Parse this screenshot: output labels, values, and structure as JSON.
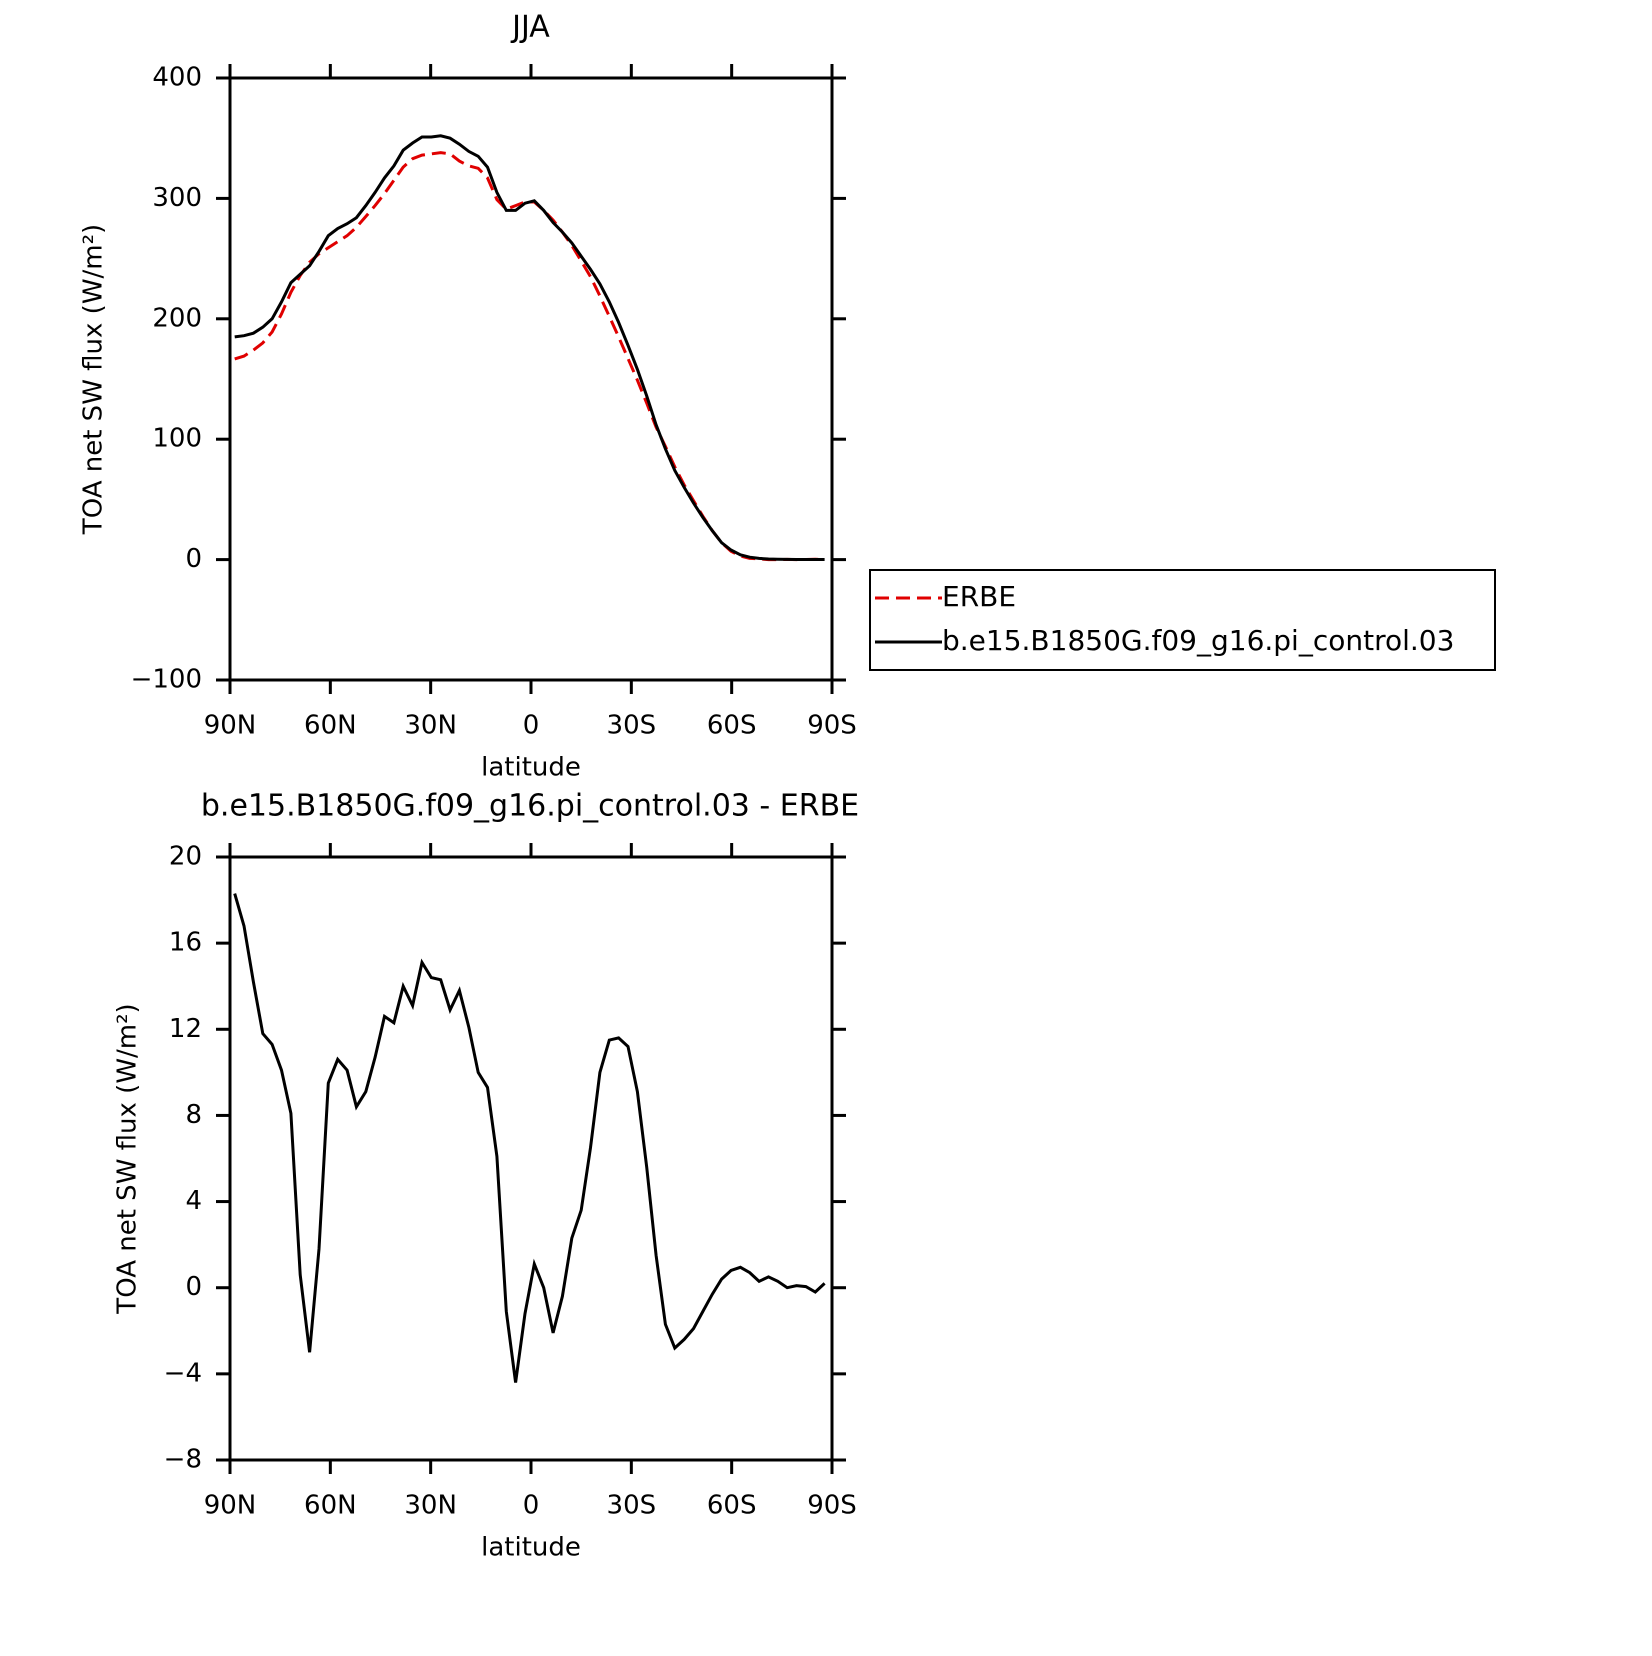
{
  "chart_data": [
    {
      "type": "line",
      "title": "JJA",
      "xlabel": "latitude",
      "ylabel": "TOA net SW flux (W/m²)",
      "xlim": [
        90,
        -90
      ],
      "xticks": [
        {
          "value": 90,
          "label": "90N"
        },
        {
          "value": 60,
          "label": "60N"
        },
        {
          "value": 30,
          "label": "30N"
        },
        0,
        {
          "value": -30,
          "label": "30S"
        },
        {
          "value": -60,
          "label": "60S"
        },
        {
          "value": -90,
          "label": "90S"
        }
      ],
      "ylim": [
        -100,
        400
      ],
      "yticks": [
        {
          "value": -100,
          "label": "−100"
        },
        0,
        100,
        200,
        300,
        400
      ],
      "legend": "outside-right",
      "x": [
        88.6,
        85.8,
        83,
        80.2,
        77.4,
        74.6,
        71.8,
        69,
        66.2,
        63.4,
        60.6,
        57.8,
        55,
        52.2,
        49.4,
        46.6,
        43.8,
        41,
        38.2,
        35.4,
        32.6,
        29.8,
        27,
        24.2,
        21.4,
        18.6,
        15.8,
        13,
        10.2,
        7.4,
        4.6,
        1.8,
        -1,
        -3.8,
        -6.6,
        -9.4,
        -12.2,
        -15,
        -17.8,
        -20.6,
        -23.4,
        -26.2,
        -29,
        -31.8,
        -34.6,
        -37.4,
        -40.2,
        -43,
        -45.8,
        -48.6,
        -51.4,
        -54.2,
        -57,
        -59.8,
        -62.6,
        -65.4,
        -68.2,
        -71,
        -73.8,
        -76.6,
        -79.4,
        -82.2,
        -85,
        -87.8
      ],
      "series": [
        {
          "name": "ERBE",
          "color": "#e00000",
          "dashed": true,
          "values": [
            166.7,
            169,
            174,
            180,
            189,
            204,
            222,
            236,
            247,
            254,
            259,
            264,
            269,
            276,
            285,
            294,
            304,
            315,
            326,
            333,
            336,
            337,
            338,
            337,
            331,
            327,
            325,
            317,
            299,
            291,
            294,
            297,
            297,
            290,
            282,
            272,
            261,
            248,
            235,
            219,
            202,
            185,
            167,
            149,
            130,
            110,
            94,
            77,
            62,
            49,
            36,
            24,
            14,
            7,
            3,
            1,
            0.7,
            0,
            0,
            0.2,
            0,
            0.05,
            0.3,
            -0.1
          ]
        },
        {
          "name": "b.e15.B1850G.f09_g16.pi_control.03",
          "color": "#000000",
          "dashed": false,
          "values": [
            185,
            186,
            188,
            193,
            200,
            214,
            230,
            237,
            244,
            256,
            269,
            275,
            279,
            284,
            294,
            305,
            317,
            327,
            340,
            346,
            351,
            351,
            352,
            350,
            345,
            339,
            335,
            326,
            305,
            290,
            290,
            296,
            298,
            290,
            280,
            272,
            263,
            252,
            241,
            229,
            214,
            197,
            178,
            158,
            136,
            112,
            92,
            74,
            60,
            47,
            35,
            24,
            14,
            8,
            4,
            2,
            1,
            0.5,
            0.3,
            0.2,
            0.1,
            0.1,
            0.1,
            0.1
          ]
        }
      ]
    },
    {
      "type": "line",
      "title": "b.e15.B1850G.f09_g16.pi_control.03 - ERBE",
      "xlabel": "latitude",
      "ylabel": "TOA net SW flux (W/m²)",
      "xlim": [
        90,
        -90
      ],
      "xticks": [
        {
          "value": 90,
          "label": "90N"
        },
        {
          "value": 60,
          "label": "60N"
        },
        {
          "value": 30,
          "label": "30N"
        },
        0,
        {
          "value": -30,
          "label": "30S"
        },
        {
          "value": -60,
          "label": "60S"
        },
        {
          "value": -90,
          "label": "90S"
        }
      ],
      "ylim": [
        -8,
        20
      ],
      "yticks": [
        {
          "value": -8,
          "label": "−8"
        },
        {
          "value": -4,
          "label": "−4"
        },
        0,
        4,
        8,
        12,
        16,
        20
      ],
      "x": [
        88.6,
        85.8,
        83,
        80.2,
        77.4,
        74.6,
        71.8,
        69,
        66.2,
        63.4,
        60.6,
        57.8,
        55,
        52.2,
        49.4,
        46.6,
        43.8,
        41,
        38.2,
        35.4,
        32.6,
        29.8,
        27,
        24.2,
        21.4,
        18.6,
        15.8,
        13,
        10.2,
        7.4,
        4.6,
        1.8,
        -1,
        -3.8,
        -6.6,
        -9.4,
        -12.2,
        -15,
        -17.8,
        -20.6,
        -23.4,
        -26.2,
        -29,
        -31.8,
        -34.6,
        -37.4,
        -40.2,
        -43,
        -45.8,
        -48.6,
        -51.4,
        -54.2,
        -57,
        -59.8,
        -62.6,
        -65.4,
        -68.2,
        -71,
        -73.8,
        -76.6,
        -79.4,
        -82.2,
        -85,
        -87.8
      ],
      "series": [
        {
          "color": "#000000",
          "dashed": false,
          "values": [
            18.3,
            16.8,
            14.2,
            11.8,
            11.3,
            10.1,
            8.1,
            0.6,
            -3.0,
            1.8,
            9.5,
            10.6,
            10.1,
            8.4,
            9.1,
            10.7,
            12.6,
            12.3,
            14.0,
            13.1,
            15.1,
            14.4,
            14.3,
            12.9,
            13.8,
            12.1,
            10.0,
            9.3,
            6.1,
            -1.1,
            -4.4,
            -1.2,
            1.1,
            0.0,
            -2.1,
            -0.4,
            2.3,
            3.6,
            6.5,
            10.0,
            11.5,
            11.6,
            11.2,
            9.1,
            5.6,
            1.5,
            -1.7,
            -2.8,
            -2.4,
            -1.9,
            -1.1,
            -0.3,
            0.4,
            0.8,
            0.95,
            0.7,
            0.3,
            0.5,
            0.3,
            0.0,
            0.1,
            0.05,
            -0.2,
            0.2
          ]
        }
      ]
    }
  ]
}
